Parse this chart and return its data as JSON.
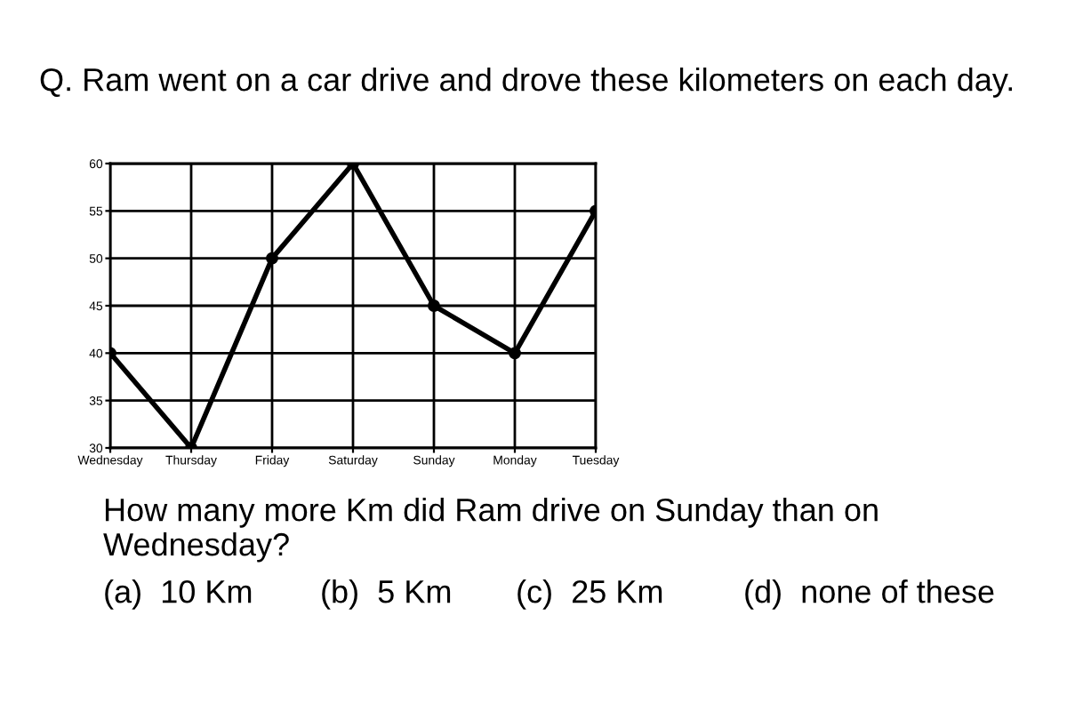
{
  "chart_data": {
    "type": "line",
    "title": "Q. Ram went on a car drive and drove these kilometers on each day.",
    "categories": [
      "Wednesday",
      "Thursday",
      "Friday",
      "Saturday",
      "Sunday",
      "Monday",
      "Tuesday"
    ],
    "series": [
      {
        "color": "#000000",
        "values": [
          40,
          30,
          50,
          60,
          45,
          40,
          55
        ]
      }
    ],
    "ylim": [
      30,
      60
    ],
    "yticks": [
      30,
      35,
      40,
      45,
      50,
      55,
      60
    ],
    "grid": true,
    "marker": "circle",
    "line_style": "solid",
    "annotations": [
      "How many more Km did Ram drive on Sunday than on Wednesday?",
      "(a)  10 Km",
      "(b)  5 Km",
      "(c)  25 Km",
      "(d)  none of these"
    ]
  }
}
